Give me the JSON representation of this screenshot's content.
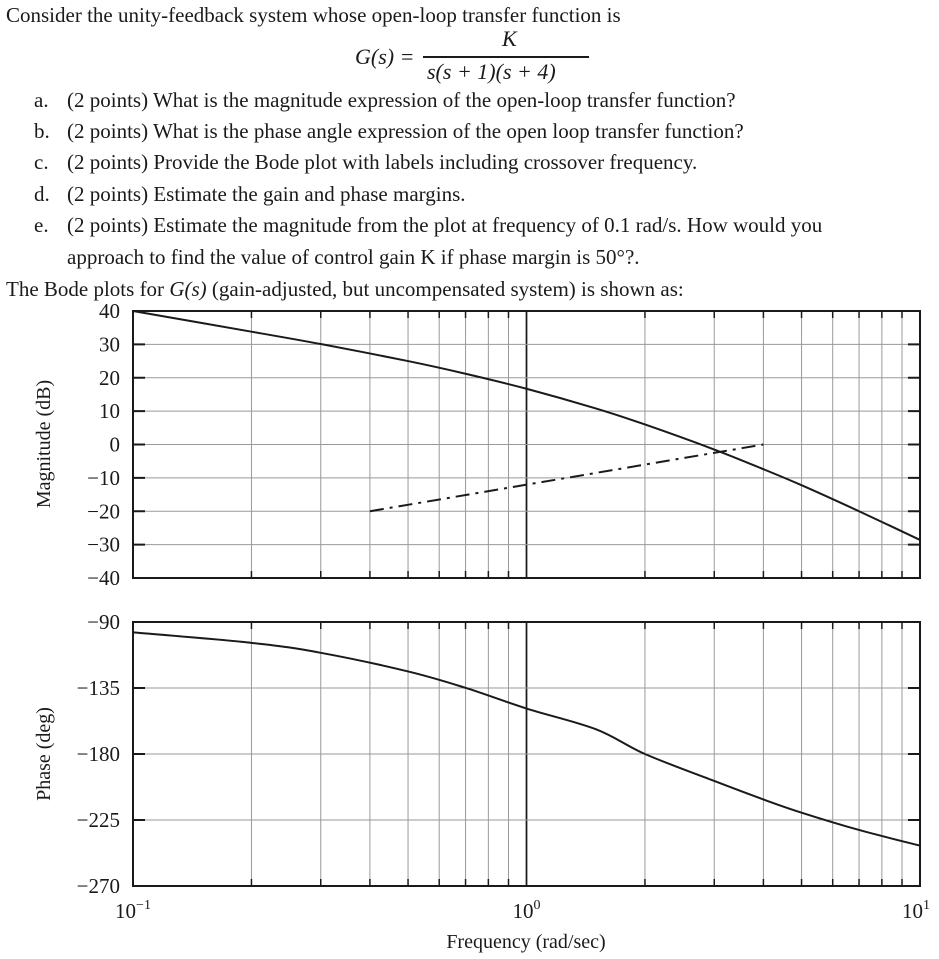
{
  "problem": {
    "intro": "Consider the unity-feedback system whose open-loop transfer function is",
    "equation": {
      "lhs": "G(s) =",
      "numerator": "K",
      "denominator": "s(s + 1)(s + 4)"
    },
    "items": [
      {
        "marker": "a.",
        "text": "(2 points) What is the magnitude expression of the open-loop transfer function?"
      },
      {
        "marker": "b.",
        "text": "(2 points) What is the phase angle expression of the open loop transfer function?"
      },
      {
        "marker": "c.",
        "text": "(2 points) Provide the Bode plot with labels including crossover frequency."
      },
      {
        "marker": "d.",
        "text": "(2 points) Estimate the gain and phase margins."
      },
      {
        "marker": "e.",
        "text": "(2 points) Estimate the magnitude from the plot at frequency of 0.1 rad/s.  How would you",
        "continuation": "approach to find the value of control gain K if phase margin is 50°?."
      }
    ],
    "figure_caption_pre": "The Bode plots for ",
    "figure_caption_func": "G(s)",
    "figure_caption_post": " (gain-adjusted, but uncompensated system) is shown as:"
  },
  "chart_data": [
    {
      "type": "line",
      "title": "Bode magnitude",
      "xlabel": "Frequency (rad/sec)",
      "ylabel": "Magnitude (dB)",
      "xscale": "log",
      "xlim": [
        0.1,
        10
      ],
      "ylim": [
        -40,
        40
      ],
      "yticks": [
        40,
        30,
        20,
        10,
        0,
        -10,
        -20,
        -30,
        -40
      ],
      "ytick_labels": [
        "40",
        "30",
        "20",
        "10",
        "0",
        "−10",
        "−20",
        "−30",
        "−40"
      ],
      "grid": true,
      "series": [
        {
          "name": "magnitude",
          "style": "solid",
          "x": [
            0.1,
            0.2,
            0.3,
            0.5,
            0.7,
            1,
            1.5,
            2,
            3,
            4,
            5,
            7,
            10
          ],
          "y": [
            40.0,
            33.8,
            30.1,
            25.0,
            21.2,
            16.7,
            10.8,
            6.0,
            -1.5,
            -7.4,
            -12.2,
            -20.0,
            -28.6
          ]
        },
        {
          "name": "reference",
          "style": "dash-dot",
          "x": [
            0.4,
            4.0
          ],
          "y": [
            -20,
            0
          ]
        }
      ]
    },
    {
      "type": "line",
      "title": "Bode phase",
      "xlabel": "Frequency (rad/sec)",
      "ylabel": "Phase (deg)",
      "xscale": "log",
      "xlim": [
        0.1,
        10
      ],
      "ylim": [
        -270,
        -90
      ],
      "yticks": [
        -90,
        -135,
        -180,
        -225,
        -270
      ],
      "ytick_labels": [
        "−90",
        "−135",
        "−180",
        "−225",
        "−270"
      ],
      "xtick_labels": [
        "10⁻¹",
        "10⁰",
        "10¹"
      ],
      "grid": true,
      "series": [
        {
          "name": "phase",
          "style": "solid",
          "x": [
            0.1,
            0.2,
            0.3,
            0.5,
            0.7,
            1,
            1.5,
            2,
            3,
            4,
            5,
            7,
            10
          ],
          "y": [
            -97.1,
            -104.2,
            -111.0,
            -123.7,
            -134.9,
            -149.0,
            -163.1,
            -180.0,
            -198.4,
            -211.0,
            -220.0,
            -231.8,
            -242.5
          ]
        }
      ]
    }
  ],
  "axis": {
    "x_major_labels": [
      {
        "base": "10",
        "exp": "−1"
      },
      {
        "base": "10",
        "exp": "0"
      },
      {
        "base": "10",
        "exp": "1"
      }
    ],
    "x_title": "Frequency (rad/sec)",
    "mag_title": "Magnitude (dB)",
    "phase_title": "Phase (deg)"
  },
  "colors": {
    "ink": "#1a1a1a",
    "grid": "#9a9a9a",
    "paper": "#ffffff"
  }
}
